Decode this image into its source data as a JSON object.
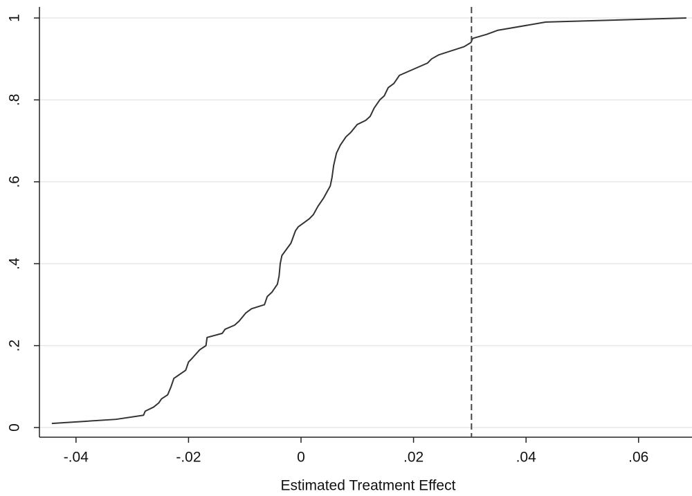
{
  "chart_data": {
    "type": "line",
    "x_label": "Estimated Treatment Effect",
    "series": [
      {
        "color": "#333333",
        "x": [
          -0.0443,
          -0.0329,
          -0.028,
          -0.0277,
          -0.0262,
          -0.0253,
          -0.0248,
          -0.0237,
          -0.0231,
          -0.0226,
          -0.0205,
          -0.02,
          -0.0193,
          -0.018,
          -0.0169,
          -0.0167,
          -0.014,
          -0.0135,
          -0.0118,
          -0.011,
          -0.0098,
          -0.0088,
          -0.0065,
          -0.006,
          -0.0052,
          -0.0042,
          -0.0039,
          -0.0037,
          -0.0034,
          -0.0018,
          -0.001,
          -0.0005,
          0.0005,
          0.0015,
          0.0022,
          0.003,
          0.004,
          0.0052,
          0.0055,
          0.0058,
          0.0063,
          0.007,
          0.008,
          0.0088,
          0.01,
          0.0115,
          0.0123,
          0.013,
          0.014,
          0.0148,
          0.0155,
          0.0165,
          0.0175,
          0.0225,
          0.0232,
          0.0245,
          0.029,
          0.0302,
          0.0305,
          0.033,
          0.035,
          0.0435,
          0.0685
        ],
        "values": [
          0.01,
          0.02,
          0.03,
          0.04,
          0.05,
          0.06,
          0.07,
          0.08,
          0.1,
          0.12,
          0.14,
          0.16,
          0.17,
          0.19,
          0.2,
          0.22,
          0.23,
          0.24,
          0.25,
          0.26,
          0.28,
          0.29,
          0.3,
          0.32,
          0.33,
          0.35,
          0.37,
          0.4,
          0.42,
          0.45,
          0.48,
          0.49,
          0.5,
          0.51,
          0.52,
          0.54,
          0.56,
          0.59,
          0.61,
          0.64,
          0.67,
          0.69,
          0.71,
          0.72,
          0.74,
          0.75,
          0.76,
          0.78,
          0.8,
          0.81,
          0.83,
          0.84,
          0.86,
          0.89,
          0.9,
          0.91,
          0.93,
          0.94,
          0.95,
          0.96,
          0.97,
          0.99,
          1.0
        ]
      }
    ],
    "vline": 0.0303,
    "vline_color": "#444444",
    "xlim": [
      -0.0465,
      0.0695
    ],
    "ylim": [
      -0.0236,
      1.027
    ],
    "xticks": [
      {
        "value": -0.04,
        "label": "-.04"
      },
      {
        "value": -0.02,
        "label": "-.02"
      },
      0,
      {
        "value": 0.02,
        "label": ".02"
      },
      {
        "value": 0.04,
        "label": ".04"
      },
      {
        "value": 0.06,
        "label": ".06"
      }
    ],
    "yticks": [
      0,
      {
        "value": 0.2,
        "label": ".2"
      },
      {
        "value": 0.4,
        "label": ".4"
      },
      {
        "value": 0.6,
        "label": ".6"
      },
      {
        "value": 0.8,
        "label": ".8"
      },
      1
    ],
    "grid": true
  }
}
